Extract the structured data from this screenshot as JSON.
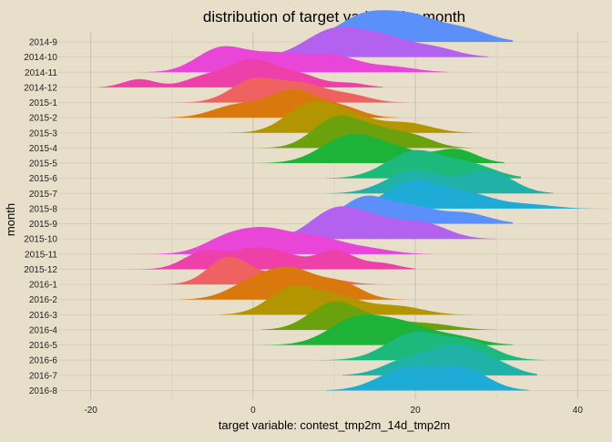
{
  "chart_data": {
    "type": "area",
    "subtype": "ridgeline",
    "title": "distribution of target variable by month",
    "xlabel": "target variable: contest_tmp2m_14d_tmp2m",
    "ylabel": "month",
    "xlim": [
      -24,
      44
    ],
    "xticks": [
      -20,
      0,
      20,
      40
    ],
    "grid": true,
    "legend": "none",
    "categories": [
      "2014-9",
      "2014-10",
      "2014-11",
      "2014-12",
      "2015-1",
      "2015-2",
      "2015-3",
      "2015-4",
      "2015-5",
      "2015-6",
      "2015-7",
      "2015-8",
      "2015-9",
      "2015-10",
      "2015-11",
      "2015-12",
      "2016-1",
      "2016-2",
      "2016-3",
      "2016-4",
      "2016-5",
      "2016-6",
      "2016-7",
      "2016-8"
    ],
    "series": [
      {
        "label": "2014-9",
        "color": "#5b8ff9",
        "range": [
          7,
          32
        ],
        "peaks": [
          [
            14,
            1.0,
            3.5
          ],
          [
            20,
            0.75,
            3
          ],
          [
            26,
            0.45,
            3
          ]
        ]
      },
      {
        "label": "2014-10",
        "color": "#b362f0",
        "range": [
          -3,
          29
        ],
        "peaks": [
          [
            10,
            1.0,
            3.5
          ],
          [
            16,
            0.6,
            3
          ],
          [
            22,
            0.35,
            3
          ]
        ]
      },
      {
        "label": "2014-11",
        "color": "#e945d8",
        "range": [
          -14,
          24
        ],
        "peaks": [
          [
            -4,
            0.85,
            3
          ],
          [
            3,
            0.65,
            3.5
          ],
          [
            10,
            0.55,
            3
          ],
          [
            17,
            0.2,
            3
          ]
        ]
      },
      {
        "label": "2014-12",
        "color": "#ee40a9",
        "range": [
          -19,
          16
        ],
        "peaks": [
          [
            -14,
            0.3,
            2
          ],
          [
            -6,
            0.35,
            2.5
          ],
          [
            0,
            1.0,
            3
          ],
          [
            6,
            0.4,
            2.5
          ],
          [
            12,
            0.15,
            2
          ]
        ]
      },
      {
        "label": "2015-1",
        "color": "#f06262",
        "range": [
          -18,
          19
        ],
        "peaks": [
          [
            0,
            0.8,
            2.8
          ],
          [
            6,
            0.65,
            3
          ],
          [
            12,
            0.25,
            2.5
          ]
        ]
      },
      {
        "label": "2015-2",
        "color": "#d9780c",
        "range": [
          -12,
          18
        ],
        "peaks": [
          [
            -2,
            0.45,
            3
          ],
          [
            5,
            1.0,
            3
          ],
          [
            11,
            0.35,
            2.5
          ]
        ]
      },
      {
        "label": "2015-3",
        "color": "#b29500",
        "range": [
          -10,
          28
        ],
        "peaks": [
          [
            7,
            1.0,
            3
          ],
          [
            12,
            0.55,
            3
          ],
          [
            19,
            0.35,
            3
          ]
        ]
      },
      {
        "label": "2015-4",
        "color": "#6ba10c",
        "range": [
          0,
          27
        ],
        "peaks": [
          [
            10,
            1.0,
            2.8
          ],
          [
            15,
            0.6,
            3
          ],
          [
            20,
            0.35,
            2.5
          ]
        ]
      },
      {
        "label": "2015-5",
        "color": "#1db338",
        "range": [
          0,
          31
        ],
        "peaks": [
          [
            12,
            1.0,
            3.5
          ],
          [
            18,
            0.4,
            3
          ],
          [
            25,
            0.5,
            2.5
          ]
        ]
      },
      {
        "label": "2015-6",
        "color": "#1cb87c",
        "range": [
          9,
          33
        ],
        "peaks": [
          [
            20,
            1.0,
            3.5
          ],
          [
            27,
            0.45,
            3
          ]
        ]
      },
      {
        "label": "2015-7",
        "color": "#20b1a8",
        "range": [
          9,
          37
        ],
        "peaks": [
          [
            20,
            0.85,
            3.5
          ],
          [
            29,
            0.8,
            3
          ]
        ]
      },
      {
        "label": "2015-8",
        "color": "#1eacd6",
        "range": [
          10,
          42
        ],
        "peaks": [
          [
            20,
            1.0,
            3.5
          ],
          [
            27,
            0.45,
            3
          ],
          [
            34,
            0.15,
            3
          ]
        ]
      },
      {
        "label": "2015-9",
        "color": "#5b8ff9",
        "range": [
          8,
          32
        ],
        "peaks": [
          [
            14,
            1.0,
            3
          ],
          [
            20,
            0.5,
            2.5
          ],
          [
            26,
            0.4,
            3
          ]
        ]
      },
      {
        "label": "2015-10",
        "color": "#b362f0",
        "range": [
          -2,
          30
        ],
        "peaks": [
          [
            10,
            1.0,
            3
          ],
          [
            15,
            0.6,
            3
          ],
          [
            21,
            0.55,
            3
          ]
        ]
      },
      {
        "label": "2015-11",
        "color": "#e945d8",
        "range": [
          -15,
          22
        ],
        "peaks": [
          [
            -3,
            0.6,
            3
          ],
          [
            2,
            0.75,
            3
          ],
          [
            8,
            0.55,
            3
          ],
          [
            14,
            0.2,
            3
          ]
        ]
      },
      {
        "label": "2015-12",
        "color": "#ee40a9",
        "range": [
          -16,
          20
        ],
        "peaks": [
          [
            -6,
            0.65,
            2.5
          ],
          [
            0,
            0.7,
            2.5
          ],
          [
            4,
            0.4,
            2
          ],
          [
            10,
            0.7,
            2.5
          ],
          [
            16,
            0.2,
            2
          ]
        ]
      },
      {
        "label": "2016-1",
        "color": "#f06262",
        "range": [
          -17,
          17
        ],
        "peaks": [
          [
            -3,
            1.0,
            2.5
          ],
          [
            3,
            0.35,
            2.5
          ],
          [
            9,
            0.2,
            2.5
          ]
        ]
      },
      {
        "label": "2016-2",
        "color": "#d9780c",
        "range": [
          -9,
          19
        ],
        "peaks": [
          [
            0,
            0.6,
            3
          ],
          [
            5,
            1.0,
            3
          ],
          [
            11,
            0.55,
            2.5
          ]
        ]
      },
      {
        "label": "2016-3",
        "color": "#b29500",
        "range": [
          -4,
          27
        ],
        "peaks": [
          [
            5,
            1.0,
            3
          ],
          [
            11,
            0.55,
            3
          ],
          [
            18,
            0.3,
            3
          ]
        ]
      },
      {
        "label": "2016-4",
        "color": "#6ba10c",
        "range": [
          1,
          30
        ],
        "peaks": [
          [
            10,
            1.0,
            3
          ],
          [
            16,
            0.3,
            3
          ],
          [
            22,
            0.2,
            3
          ]
        ]
      },
      {
        "label": "2016-5",
        "color": "#1db338",
        "range": [
          1,
          32
        ],
        "peaks": [
          [
            13,
            1.0,
            3.5
          ],
          [
            19,
            0.6,
            3
          ],
          [
            25,
            0.3,
            3
          ]
        ]
      },
      {
        "label": "2016-6",
        "color": "#1cb87c",
        "range": [
          8,
          36
        ],
        "peaks": [
          [
            20,
            1.0,
            3.5
          ],
          [
            27,
            0.6,
            3
          ]
        ]
      },
      {
        "label": "2016-7",
        "color": "#20b1a8",
        "range": [
          11,
          35
        ],
        "peaks": [
          [
            19,
            0.55,
            3
          ],
          [
            25,
            1.0,
            3
          ],
          [
            30,
            0.35,
            2.5
          ]
        ]
      },
      {
        "label": "2016-8",
        "color": "#1eacd6",
        "range": [
          9,
          34
        ],
        "peaks": [
          [
            19,
            0.8,
            3.5
          ],
          [
            26,
            0.75,
            3
          ]
        ]
      }
    ]
  }
}
